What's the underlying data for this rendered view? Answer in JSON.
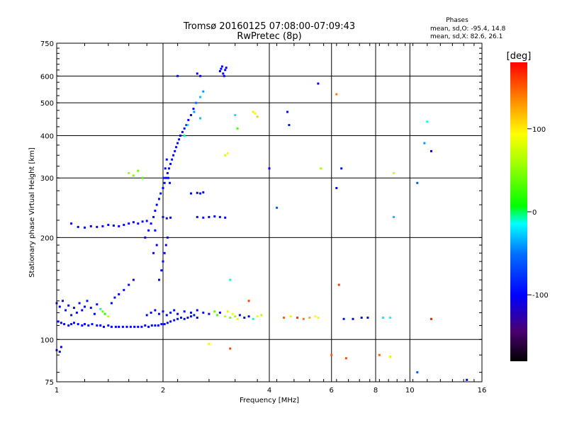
{
  "chart_data": {
    "type": "scatter",
    "title": "Tromsø 20160125 07:08:00-07:09:43",
    "subtitle": "RwPretec (8p)",
    "stats": {
      "heading": "Phases",
      "line_o": "mean, sd,O: -95.4, 14.8",
      "line_x": "mean, sd,X:  82.6, 26.1"
    },
    "xlabel": "Frequency [MHz]",
    "ylabel": "Stationary phase Virtual Height [km]",
    "xscale": "log",
    "yscale": "log",
    "xlim": [
      1,
      16
    ],
    "ylim": [
      75,
      750
    ],
    "x_ticks": [
      1,
      2,
      4,
      6,
      8,
      10,
      16
    ],
    "y_ticks": [
      75,
      100,
      200,
      300,
      400,
      500,
      600,
      750
    ],
    "colorbar": {
      "label": "[deg]",
      "range": [
        -180,
        180
      ],
      "ticks": [
        100,
        0,
        -100
      ]
    },
    "points": [
      [
        1.0,
        93,
        -100
      ],
      [
        1.02,
        92,
        -95
      ],
      [
        1.03,
        95,
        -100
      ],
      [
        1.0,
        128,
        -95
      ],
      [
        1.02,
        125,
        -100
      ],
      [
        1.04,
        130,
        -98
      ],
      [
        1.06,
        122,
        -96
      ],
      [
        1.08,
        126,
        -100
      ],
      [
        1.1,
        118,
        -93
      ],
      [
        1.12,
        124,
        -97
      ],
      [
        1.14,
        120,
        -100
      ],
      [
        1.16,
        128,
        -95
      ],
      [
        1.18,
        122,
        -99
      ],
      [
        1.2,
        125,
        -96
      ],
      [
        1.22,
        130,
        -94
      ],
      [
        1.25,
        124,
        -98
      ],
      [
        1.28,
        119,
        -100
      ],
      [
        1.3,
        127,
        -96
      ],
      [
        1.33,
        123,
        -10
      ],
      [
        1.35,
        121,
        40
      ],
      [
        1.37,
        119,
        20
      ],
      [
        1.4,
        117,
        70
      ],
      [
        1.43,
        128,
        -97
      ],
      [
        1.46,
        133,
        -95
      ],
      [
        1.5,
        136,
        -100
      ],
      [
        1.55,
        140,
        -93
      ],
      [
        1.6,
        145,
        -96
      ],
      [
        1.65,
        150,
        -98
      ],
      [
        1.01,
        113,
        -96
      ],
      [
        1.03,
        112,
        -98
      ],
      [
        1.05,
        111,
        -100
      ],
      [
        1.08,
        110,
        -97
      ],
      [
        1.1,
        111,
        -95
      ],
      [
        1.12,
        112,
        -99
      ],
      [
        1.15,
        111,
        -100
      ],
      [
        1.18,
        110,
        -96
      ],
      [
        1.2,
        111,
        -98
      ],
      [
        1.23,
        110,
        -100
      ],
      [
        1.26,
        111,
        -97
      ],
      [
        1.3,
        110,
        -94
      ],
      [
        1.33,
        110,
        -99
      ],
      [
        1.36,
        109,
        -100
      ],
      [
        1.4,
        110,
        -96
      ],
      [
        1.43,
        109,
        -98
      ],
      [
        1.47,
        109,
        -95
      ],
      [
        1.5,
        109,
        -100
      ],
      [
        1.54,
        109,
        -97
      ],
      [
        1.58,
        109,
        -99
      ],
      [
        1.62,
        109,
        -96
      ],
      [
        1.66,
        109,
        -100
      ],
      [
        1.7,
        109,
        -98
      ],
      [
        1.74,
        109,
        -95
      ],
      [
        1.78,
        110,
        -97
      ],
      [
        1.82,
        109,
        -99
      ],
      [
        1.86,
        110,
        -96
      ],
      [
        1.9,
        110,
        -100
      ],
      [
        1.94,
        110,
        -97
      ],
      [
        1.98,
        111,
        -95
      ],
      [
        2.02,
        111,
        -99
      ],
      [
        2.06,
        112,
        -97
      ],
      [
        2.1,
        113,
        -100
      ],
      [
        2.15,
        114,
        -96
      ],
      [
        2.2,
        115,
        -98
      ],
      [
        2.25,
        116,
        -95
      ],
      [
        2.3,
        115,
        -99
      ],
      [
        2.35,
        116,
        -100
      ],
      [
        2.4,
        117,
        -97
      ],
      [
        2.45,
        118,
        -95
      ],
      [
        2.5,
        116,
        -99
      ],
      [
        1.8,
        118,
        -96
      ],
      [
        1.85,
        120,
        -98
      ],
      [
        1.9,
        122,
        -100
      ],
      [
        1.95,
        119,
        -95
      ],
      [
        2.0,
        121,
        -97
      ],
      [
        2.05,
        118,
        -99
      ],
      [
        2.1,
        120,
        -96
      ],
      [
        2.15,
        122,
        -98
      ],
      [
        2.2,
        119,
        -100
      ],
      [
        2.3,
        121,
        -95
      ],
      [
        2.4,
        120,
        -97
      ],
      [
        2.5,
        122,
        -99
      ],
      [
        2.6,
        120,
        -96
      ],
      [
        2.7,
        119,
        -98
      ],
      [
        2.8,
        121,
        40
      ],
      [
        2.85,
        118,
        30
      ],
      [
        2.9,
        120,
        -100
      ],
      [
        3.0,
        117,
        70
      ],
      [
        3.05,
        121,
        80
      ],
      [
        3.1,
        116,
        50
      ],
      [
        3.15,
        119,
        90
      ],
      [
        3.2,
        117,
        60
      ],
      [
        3.25,
        115,
        85
      ],
      [
        3.3,
        118,
        -95
      ],
      [
        3.4,
        116,
        -98
      ],
      [
        3.5,
        117,
        -100
      ],
      [
        3.6,
        115,
        -10
      ],
      [
        3.7,
        117,
        90
      ],
      [
        3.8,
        118,
        70
      ],
      [
        4.4,
        116,
        150
      ],
      [
        4.6,
        117,
        100
      ],
      [
        4.8,
        116,
        160
      ],
      [
        5.0,
        115,
        140
      ],
      [
        5.2,
        116,
        120
      ],
      [
        5.4,
        117,
        95
      ],
      [
        5.5,
        116,
        85
      ],
      [
        6.5,
        115,
        -95
      ],
      [
        6.9,
        115,
        -100
      ],
      [
        7.3,
        116,
        -97
      ],
      [
        7.6,
        116,
        -95
      ],
      [
        8.4,
        116,
        -20
      ],
      [
        8.8,
        116,
        -15
      ],
      [
        11.5,
        115,
        170
      ],
      [
        1.1,
        220,
        -100
      ],
      [
        1.15,
        215,
        -98
      ],
      [
        1.2,
        214,
        -95
      ],
      [
        1.25,
        216,
        -100
      ],
      [
        1.3,
        215,
        -97
      ],
      [
        1.35,
        216,
        -99
      ],
      [
        1.4,
        218,
        -96
      ],
      [
        1.45,
        217,
        -100
      ],
      [
        1.5,
        216,
        -98
      ],
      [
        1.55,
        218,
        -95
      ],
      [
        1.6,
        220,
        -99
      ],
      [
        1.65,
        222,
        -97
      ],
      [
        1.7,
        220,
        -100
      ],
      [
        1.75,
        223,
        -96
      ],
      [
        1.8,
        224,
        -98
      ],
      [
        1.78,
        200,
        -95
      ],
      [
        1.82,
        210,
        -100
      ],
      [
        1.85,
        220,
        -97
      ],
      [
        1.88,
        230,
        -99
      ],
      [
        1.9,
        240,
        -96
      ],
      [
        1.92,
        250,
        -100
      ],
      [
        1.95,
        260,
        -97
      ],
      [
        1.97,
        270,
        -95
      ],
      [
        2.0,
        280,
        -99
      ],
      [
        2.02,
        290,
        -96
      ],
      [
        2.04,
        300,
        -100
      ],
      [
        2.06,
        310,
        -97
      ],
      [
        2.08,
        320,
        -95
      ],
      [
        2.1,
        330,
        -99
      ],
      [
        2.12,
        340,
        -96
      ],
      [
        2.14,
        350,
        -100
      ],
      [
        2.16,
        360,
        -97
      ],
      [
        2.18,
        370,
        -95
      ],
      [
        2.2,
        380,
        -99
      ],
      [
        2.22,
        390,
        -96
      ],
      [
        2.24,
        400,
        -98
      ],
      [
        2.27,
        410,
        -100
      ],
      [
        2.3,
        420,
        -95
      ],
      [
        2.33,
        430,
        -97
      ],
      [
        2.36,
        445,
        -99
      ],
      [
        2.4,
        460,
        -96
      ],
      [
        2.44,
        480,
        -95
      ],
      [
        2.48,
        500,
        -50
      ],
      [
        2.55,
        520,
        -30
      ],
      [
        2.6,
        540,
        -40
      ],
      [
        1.95,
        150,
        -96
      ],
      [
        1.98,
        160,
        -100
      ],
      [
        2.0,
        170,
        -97
      ],
      [
        2.02,
        180,
        -95
      ],
      [
        2.04,
        190,
        -99
      ],
      [
        2.06,
        200,
        -96
      ],
      [
        1.9,
        210,
        -98
      ],
      [
        1.92,
        190,
        -100
      ],
      [
        1.88,
        180,
        -97
      ],
      [
        2.01,
        300,
        -95
      ],
      [
        2.03,
        320,
        -100
      ],
      [
        2.05,
        340,
        -97
      ],
      [
        2.07,
        300,
        -99
      ],
      [
        2.09,
        290,
        -96
      ],
      [
        2.0,
        230,
        -98
      ],
      [
        2.05,
        228,
        -95
      ],
      [
        2.1,
        229,
        -100
      ],
      [
        2.5,
        230,
        -97
      ],
      [
        2.6,
        229,
        -96
      ],
      [
        2.7,
        230,
        -100
      ],
      [
        2.8,
        231,
        -98
      ],
      [
        2.9,
        230,
        -95
      ],
      [
        3.0,
        229,
        -99
      ],
      [
        2.4,
        270,
        -97
      ],
      [
        2.5,
        271,
        -99
      ],
      [
        2.55,
        270,
        -96
      ],
      [
        2.6,
        272,
        -98
      ],
      [
        2.3,
        400,
        -10
      ],
      [
        2.35,
        430,
        -20
      ],
      [
        2.45,
        470,
        -40
      ],
      [
        2.55,
        450,
        -30
      ],
      [
        1.6,
        310,
        60
      ],
      [
        1.65,
        305,
        50
      ],
      [
        1.7,
        315,
        40
      ],
      [
        1.75,
        300,
        30
      ],
      [
        2.9,
        620,
        -100
      ],
      [
        2.92,
        630,
        -98
      ],
      [
        2.94,
        640,
        -95
      ],
      [
        2.96,
        610,
        -100
      ],
      [
        2.98,
        600,
        -97
      ],
      [
        3.0,
        625,
        -99
      ],
      [
        3.02,
        635,
        -96
      ],
      [
        2.5,
        610,
        -100
      ],
      [
        2.55,
        600,
        -98
      ],
      [
        2.2,
        600,
        -95
      ],
      [
        3.0,
        350,
        80
      ],
      [
        3.05,
        355,
        90
      ],
      [
        3.6,
        470,
        100
      ],
      [
        3.65,
        465,
        95
      ],
      [
        3.7,
        455,
        110
      ],
      [
        3.2,
        460,
        -20
      ],
      [
        3.25,
        420,
        30
      ],
      [
        4.0,
        320,
        -100
      ],
      [
        4.5,
        470,
        -95
      ],
      [
        4.55,
        430,
        -90
      ],
      [
        5.5,
        570,
        -100
      ],
      [
        6.2,
        530,
        140
      ],
      [
        5.6,
        320,
        60
      ],
      [
        6.2,
        280,
        -98
      ],
      [
        6.4,
        320,
        -97
      ],
      [
        9.0,
        310,
        80
      ],
      [
        9.0,
        230,
        -30
      ],
      [
        10.5,
        290,
        -60
      ],
      [
        11.0,
        380,
        -40
      ],
      [
        11.5,
        360,
        -100
      ],
      [
        11.2,
        440,
        -15
      ],
      [
        3.1,
        150,
        -10
      ],
      [
        3.5,
        130,
        160
      ],
      [
        4.2,
        245,
        -60
      ],
      [
        6.0,
        90,
        150
      ],
      [
        6.3,
        145,
        160
      ],
      [
        6.6,
        88,
        155
      ],
      [
        8.2,
        90,
        150
      ],
      [
        8.8,
        89,
        80
      ],
      [
        10.5,
        80,
        -60
      ],
      [
        14.5,
        76,
        -100
      ],
      [
        2.7,
        97,
        100
      ],
      [
        3.1,
        94,
        160
      ]
    ]
  }
}
